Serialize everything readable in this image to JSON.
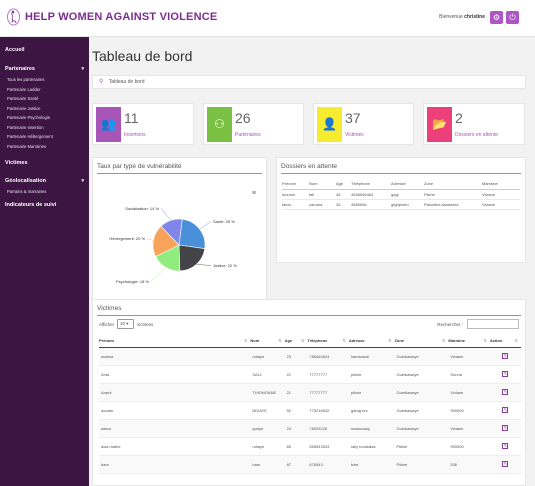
{
  "header": {
    "brand": "HELP WOMEN AGAINST VIOLENCE",
    "welcome_prefix": "Bienvenue",
    "username": "christine",
    "btn1_icon": "gear-icon",
    "btn2_icon": "power-icon"
  },
  "sidebar": {
    "home": "Accueil",
    "partners": "Partenaires",
    "partner_items": [
      "Tous les partenaires",
      "Partenaire Ladder",
      "Partenaire Santé",
      "Partenaire Justice",
      "Partenaire Psychologie",
      "Partenaire Insertion",
      "Partenaire Hébergement",
      "Partenaire Marraines"
    ],
    "victims": "Victimes",
    "geo": "Géolocalisation",
    "geo_items": [
      "Parrains & marraines"
    ],
    "indicators": "Indicateurs de suivi"
  },
  "page": {
    "title": "Tableau de bord",
    "breadcrumb": "Tableau de bord"
  },
  "stats": [
    {
      "value": "11",
      "label": "Insertions",
      "color": "#a855b8",
      "icon": "users-icon"
    },
    {
      "value": "26",
      "label": "Partenaires",
      "color": "#7ac143",
      "icon": "partners-icon"
    },
    {
      "value": "37",
      "label": "Victimes",
      "color": "#f5ec30",
      "icon": "user-icon"
    },
    {
      "value": "2",
      "label": "Dossiers en attente",
      "color": "#ec407a",
      "icon": "folder-icon"
    }
  ],
  "pie_card": {
    "title": "Taux par type de vulnérabilité",
    "menu_icon": "menu-icon"
  },
  "chart_data": {
    "type": "pie",
    "title": "",
    "slices": [
      {
        "label": "Santé",
        "value": 25,
        "display": "Santé: 25 %",
        "color": "#4a90d9"
      },
      {
        "label": "Justice",
        "value": 22,
        "display": "Justice: 22 %",
        "color": "#434348"
      },
      {
        "label": "Psychologie",
        "value": 18,
        "display": "Psychologie: 18 %",
        "color": "#90ed7d"
      },
      {
        "label": "Hébergement",
        "value": 20,
        "display": "Hébergement: 20 %",
        "color": "#f7a35c"
      },
      {
        "label": "Socialisation",
        "value": 14,
        "display": "Socialisation: 14 %",
        "color": "#8085e9"
      }
    ]
  },
  "pending": {
    "title": "Dossiers en attente",
    "columns": [
      "Prénom",
      "Nom",
      "Age",
      "Téléphone",
      "Adresse",
      "Zone",
      "Marraine"
    ],
    "rows": [
      [
        "mounni",
        "fall",
        "45",
        "4546546464",
        "gagi",
        "Pikine",
        "Viviane"
      ],
      [
        "fatou",
        "camara",
        "26",
        "4565656",
        "gfghjhnhn",
        "Parcelles Assainies",
        "Viviane"
      ]
    ]
  },
  "victims": {
    "title": "Victimes",
    "show_label": "Afficher",
    "page_size": "10",
    "entries_label": "victimes",
    "search_label": "Rechercher :",
    "search_value": "",
    "columns": [
      "Prénom",
      "Nom",
      "Age",
      "Téléphone",
      "Adresse",
      "Zone",
      "Marraine",
      "Action"
    ],
    "rows": [
      [
        "adama",
        "ndiaye",
        "23",
        "786464624",
        "hamwasdi",
        "Guediawaye",
        "Viviane"
      ],
      [
        "Anta",
        "SALL",
        "21",
        "77777777",
        "pikine",
        "Guediawaye",
        "Sonna"
      ],
      [
        "Arami",
        "THIONGANE",
        "21",
        "77777777",
        "pikine",
        "Guediawaye",
        "Viviane"
      ],
      [
        "aouam",
        "NDIAYE",
        "52",
        "775216632",
        "gdrdg hrz",
        "Guediawaye",
        "900000"
      ],
      [
        "aatou",
        "gueye",
        "24",
        "78026226",
        "rowaccasy",
        "Guediawaye",
        "Viviane"
      ],
      [
        "awa mathe",
        "ndiaye",
        "65",
        "555543533",
        "rally boudalas",
        "Pikine",
        "900000"
      ],
      [
        "bam",
        "bam",
        "87",
        "676543",
        "fche",
        "Pikine",
        "536"
      ]
    ]
  }
}
